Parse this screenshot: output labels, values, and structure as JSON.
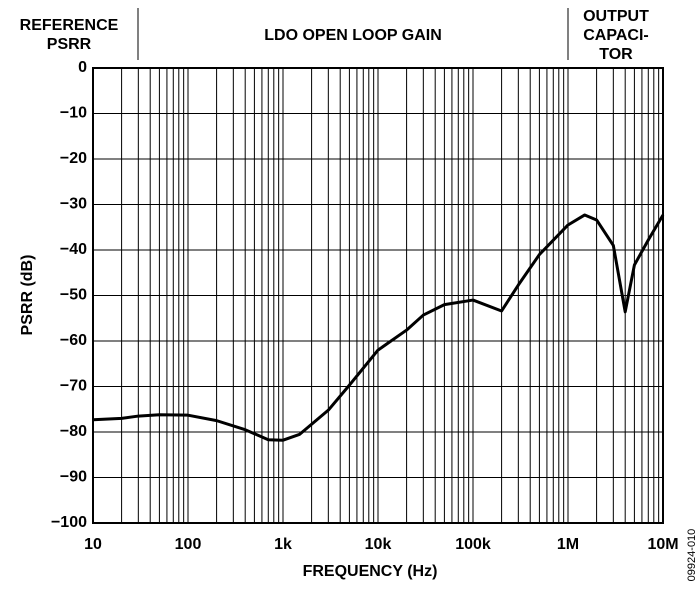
{
  "chart_data": {
    "type": "line",
    "x_label": "FREQUENCY (Hz)",
    "y_label": "PSRR (dB)",
    "regions": [
      {
        "lines": [
          "REFERENCE",
          "PSRR"
        ]
      },
      {
        "lines": [
          "LDO OPEN LOOP GAIN"
        ]
      },
      {
        "lines": [
          "OUTPUT",
          "CAPACI-",
          "TOR"
        ]
      }
    ],
    "figure_id": "09924-010",
    "log_x": true,
    "grid": true,
    "xlim": [
      10,
      10000000
    ],
    "xticks": [
      10,
      100,
      {
        "value": 1000,
        "label": "1k"
      },
      {
        "value": 10000,
        "label": "10k"
      },
      {
        "value": 100000,
        "label": "100k"
      },
      {
        "value": 1000000,
        "label": "1M"
      },
      {
        "value": 10000000,
        "label": "10M"
      }
    ],
    "ylim": [
      -100,
      0
    ],
    "yticks": [
      0,
      {
        "value": -10,
        "label": "−10"
      },
      {
        "value": -20,
        "label": "−20"
      },
      {
        "value": -30,
        "label": "−30"
      },
      {
        "value": -40,
        "label": "−40"
      },
      {
        "value": -50,
        "label": "−50"
      },
      {
        "value": -60,
        "label": "−60"
      },
      {
        "value": -70,
        "label": "−70"
      },
      {
        "value": -80,
        "label": "−80"
      },
      {
        "value": -90,
        "label": "−90"
      },
      {
        "value": -100,
        "label": "−100"
      }
    ],
    "series": [
      {
        "color": "#000000",
        "x": [
          10,
          20,
          30,
          50,
          100,
          200,
          400,
          700,
          1000,
          1500,
          3000,
          5000,
          10000,
          20000,
          30000,
          50000,
          100000,
          200000,
          300000,
          500000,
          1000000,
          1500000,
          2000000,
          3000000,
          4000000,
          5000000,
          7000000,
          10000000
        ],
        "values": [
          -77.3,
          -77,
          -76.5,
          -76.2,
          -76.3,
          -77.5,
          -79.5,
          -81.7,
          -81.8,
          -80.5,
          -75.2,
          -69.7,
          -62,
          -57.6,
          -54.3,
          -52,
          -51,
          -53.4,
          -47.7,
          -41,
          -34.5,
          -32.3,
          -33.4,
          -39,
          -53.6,
          -43.3,
          -37.8,
          -32.3
        ]
      }
    ]
  }
}
